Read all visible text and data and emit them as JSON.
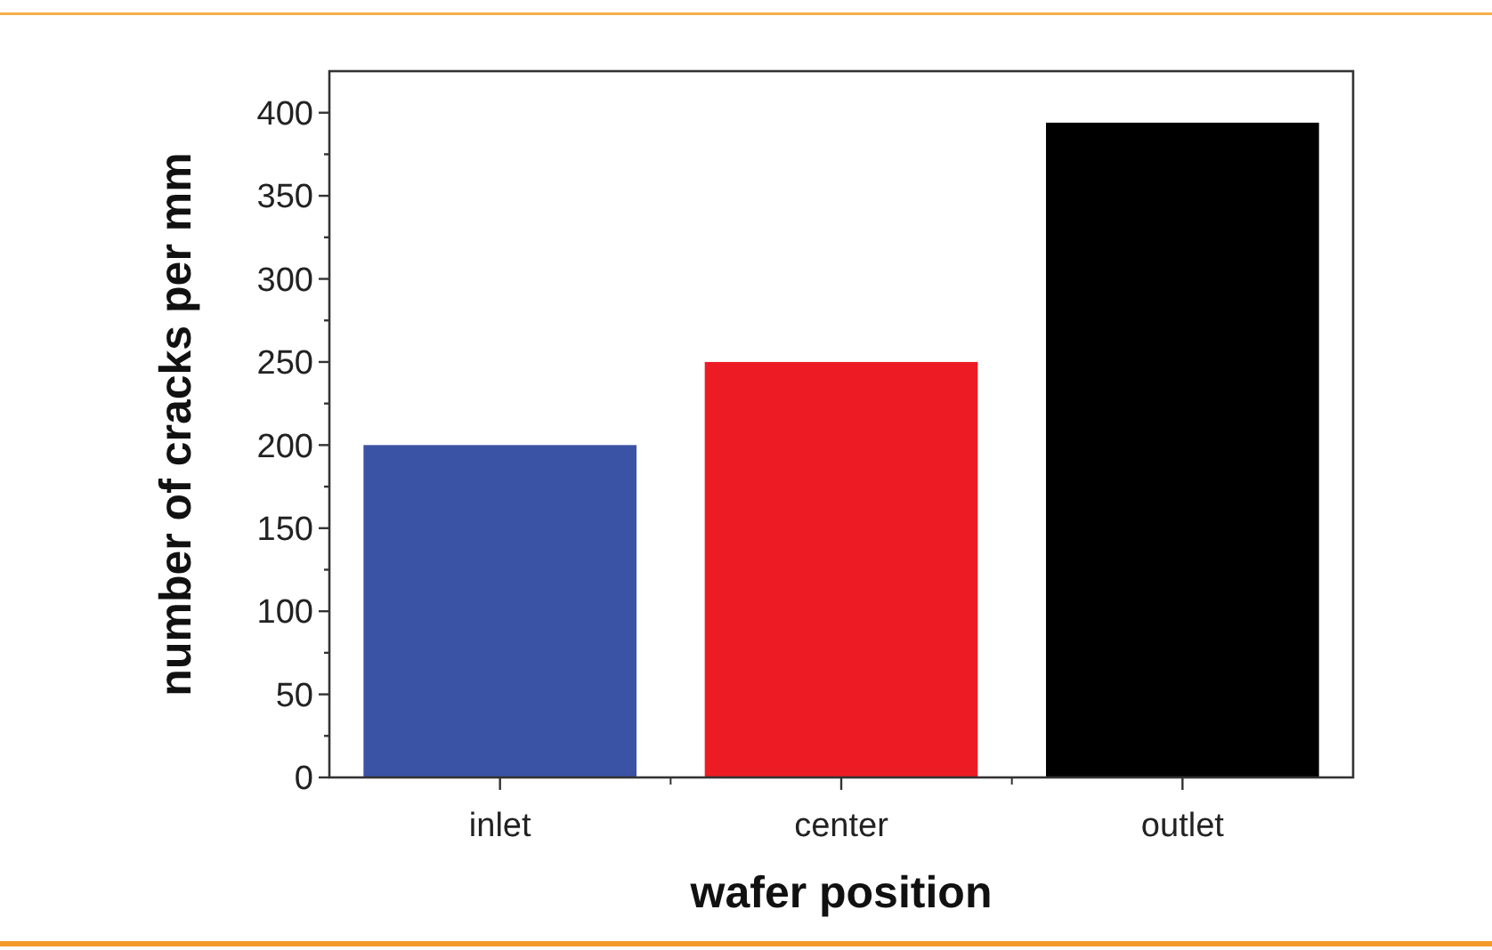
{
  "chart_data": {
    "type": "bar",
    "xlabel": "wafer position",
    "ylabel": "number of cracks per mm",
    "categories": [
      "inlet",
      "center",
      "outlet"
    ],
    "values": [
      200,
      250,
      394
    ],
    "colors": [
      "#3a53a4",
      "#ed1c24",
      "#000000"
    ],
    "ylim": [
      0,
      425
    ],
    "yticks": [
      0,
      {
        "value": 25,
        "label": null
      },
      50,
      {
        "value": 75,
        "label": null
      },
      100,
      {
        "value": 125,
        "label": null
      },
      150,
      {
        "value": 175,
        "label": null
      },
      200,
      {
        "value": 225,
        "label": null
      },
      250,
      {
        "value": 275,
        "label": null
      },
      300,
      {
        "value": 325,
        "label": null
      },
      350,
      {
        "value": 375,
        "label": null
      },
      400
    ],
    "grid": false
  }
}
